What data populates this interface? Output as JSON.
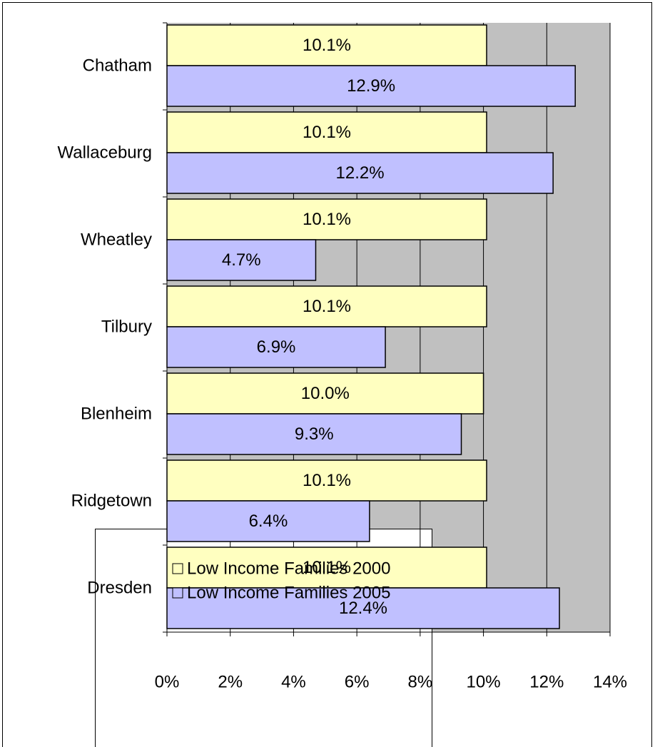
{
  "chart_data": {
    "type": "barh",
    "categories": [
      "Chatham",
      "Wallaceburg",
      "Wheatley",
      "Tilbury",
      "Blenheim",
      "Ridgetown",
      "Dresden"
    ],
    "series": [
      {
        "name": "Low Income Families 2000",
        "color": "#ffffc0",
        "values": [
          10.1,
          10.1,
          10.1,
          10.1,
          10.0,
          10.1,
          10.1
        ],
        "value_labels": [
          "10.1%",
          "10.1%",
          "10.1%",
          "10.1%",
          "10.0%",
          "10.1%",
          "10.1%"
        ]
      },
      {
        "name": "Low Income Families 2005",
        "color": "#c0c0ff",
        "values": [
          12.9,
          12.2,
          4.7,
          6.9,
          9.3,
          6.4,
          12.4
        ],
        "value_labels": [
          "12.9%",
          "12.2%",
          "4.7%",
          "6.9%",
          "9.3%",
          "6.4%",
          "12.4%"
        ]
      }
    ],
    "xlim": [
      0,
      14
    ],
    "xticks": [
      {
        "value": 0,
        "label": "0%"
      },
      {
        "value": 2,
        "label": "2%"
      },
      {
        "value": 4,
        "label": "4%"
      },
      {
        "value": 6,
        "label": "6%"
      },
      {
        "value": 8,
        "label": "8%"
      },
      {
        "value": 10,
        "label": "10%"
      },
      {
        "value": 12,
        "label": "12%"
      },
      {
        "value": 14,
        "label": "14%"
      }
    ],
    "grid": true
  }
}
